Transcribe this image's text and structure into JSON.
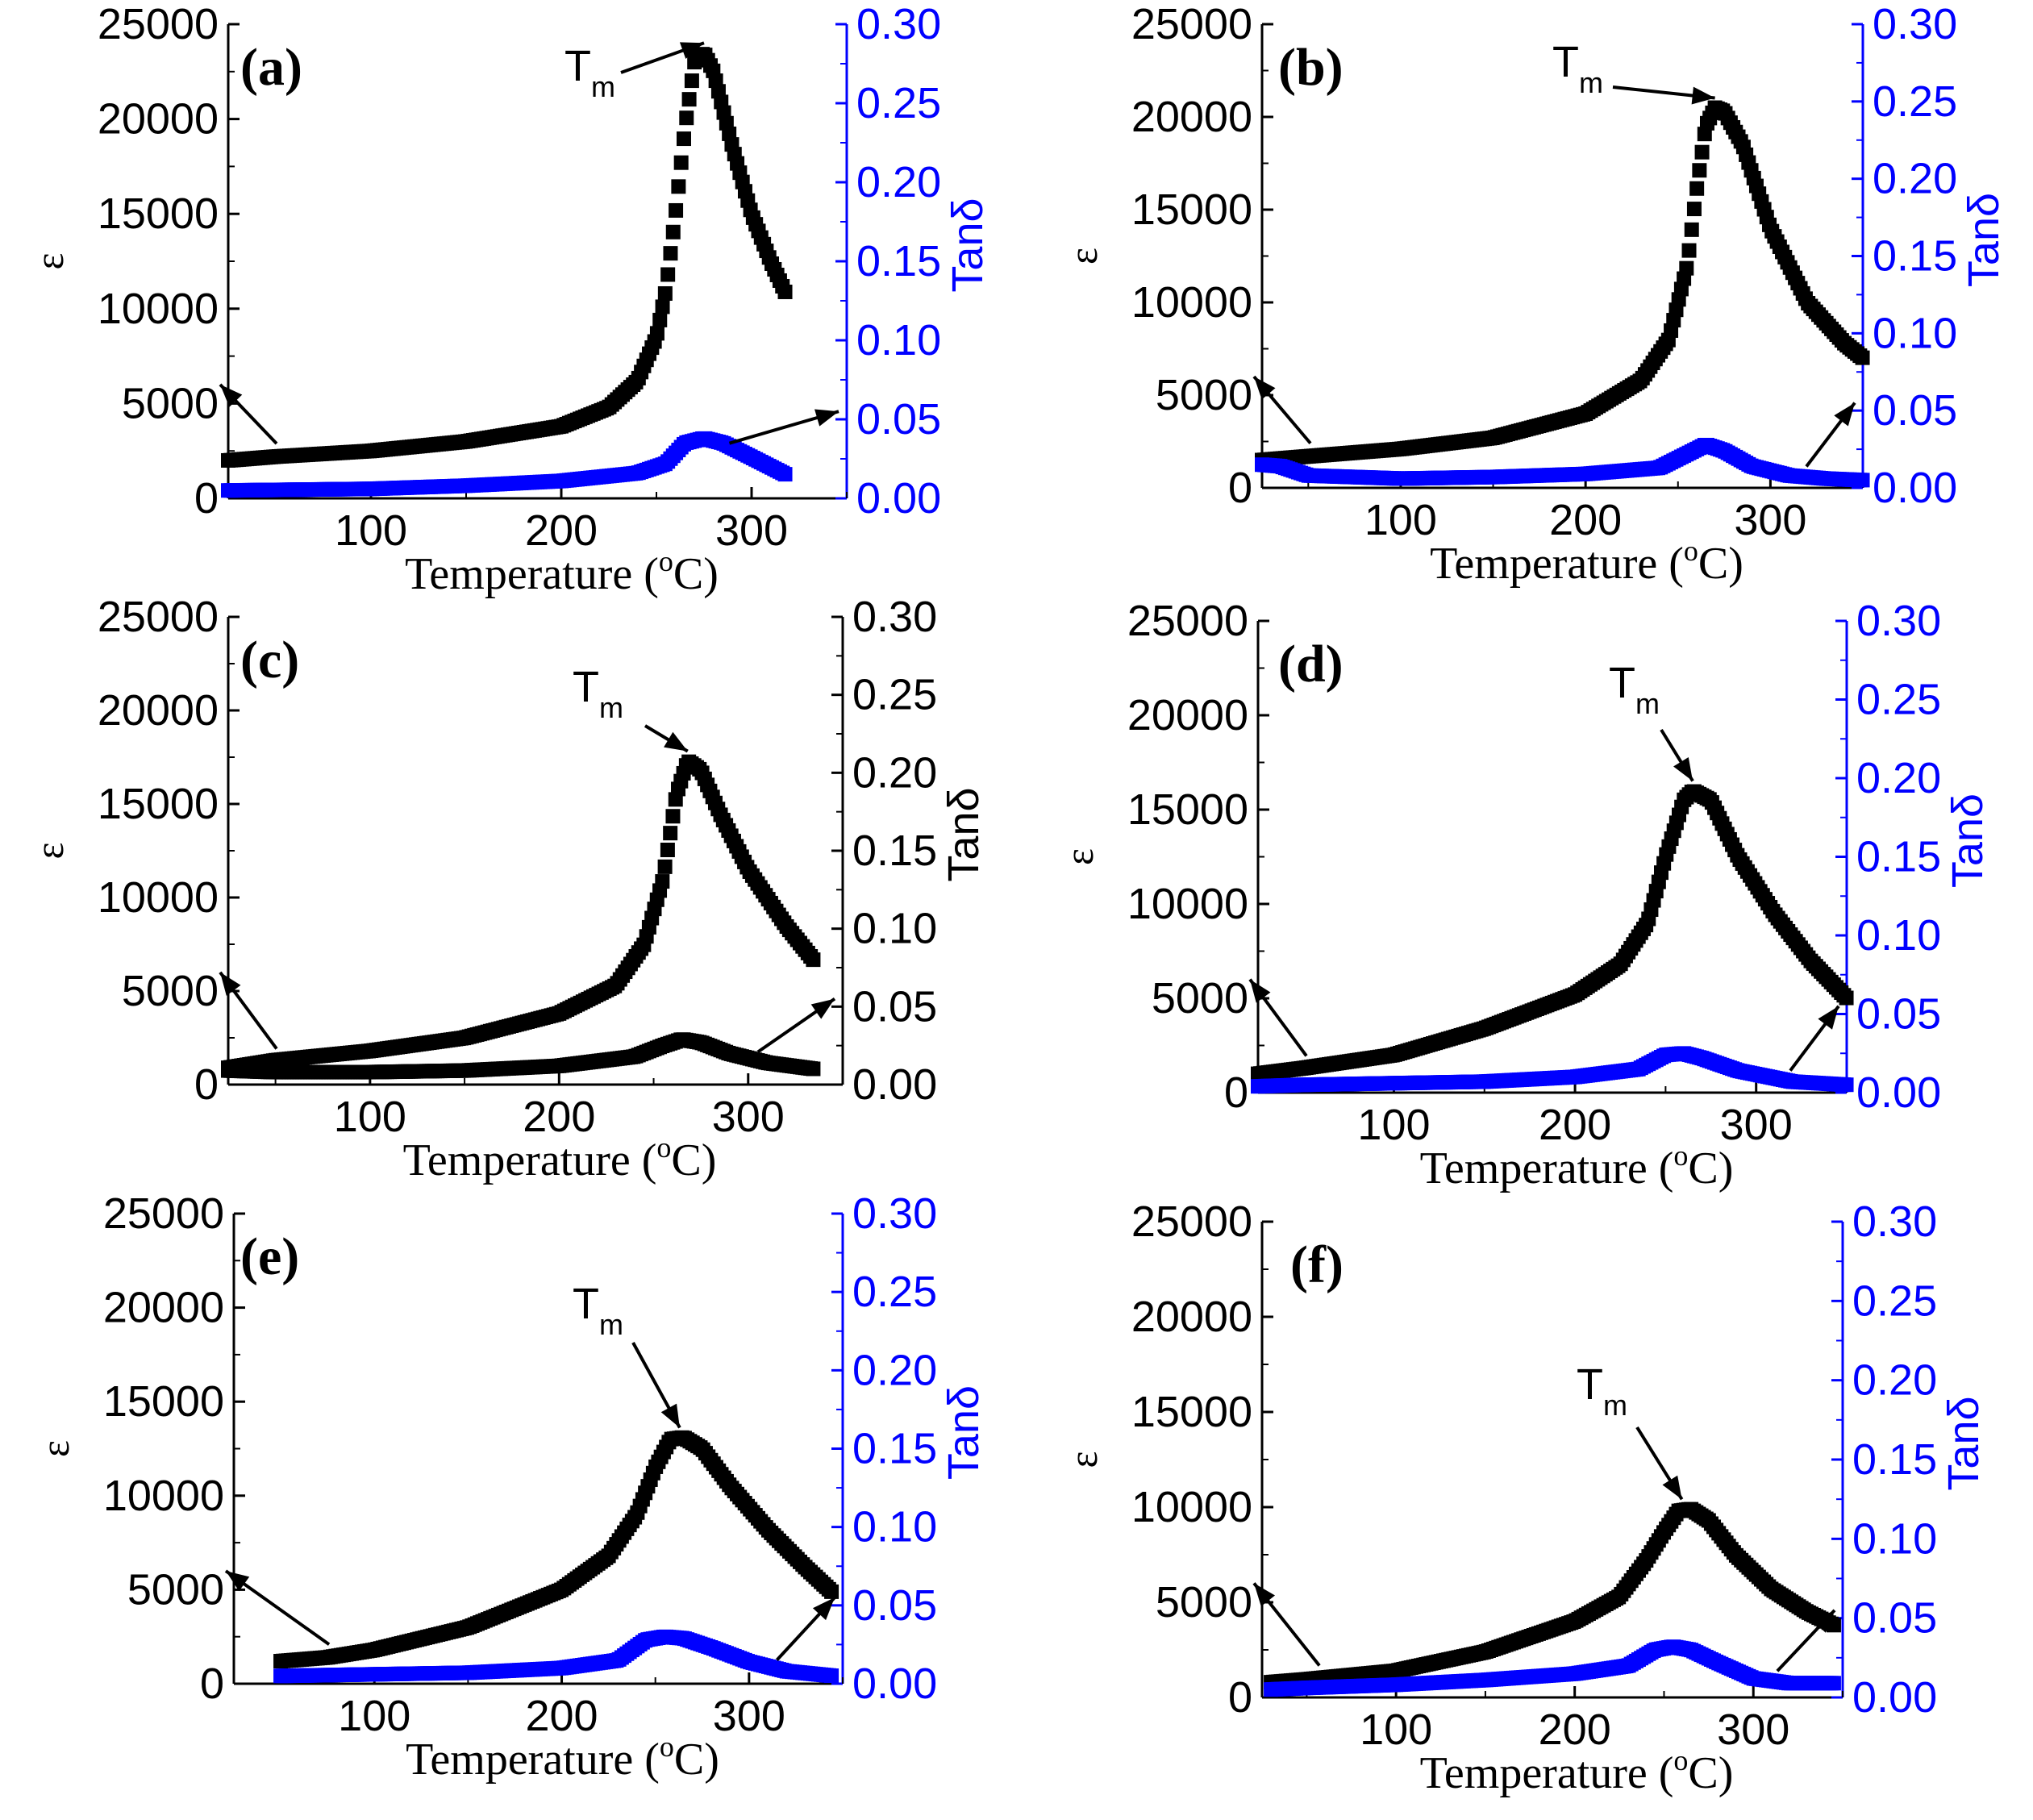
{
  "colors": {
    "eps": "#000000",
    "tan": "#0000ff",
    "axis": "#000000"
  },
  "common": {
    "xlabel_main": "Temperature (",
    "xlabel_sup": "o",
    "xlabel_end": "C)",
    "ylabel_left": "ε",
    "ylabel_right": "Tanδ",
    "tm_main": "T",
    "tm_sub": "m",
    "yticks_left": [
      "0",
      "5000",
      "10000",
      "15000",
      "20000",
      "25000"
    ],
    "yticks_right": [
      "0.00",
      "0.05",
      "0.10",
      "0.15",
      "0.20",
      "0.25",
      "0.30"
    ],
    "xticks": [
      "100",
      "200",
      "300"
    ]
  },
  "chart_data": [
    {
      "panel": "(a)",
      "type": "scatter",
      "xlabel": "Temperature (°C)",
      "ylabel": "ε",
      "y2label": "Tanδ",
      "xlim": [
        25,
        350
      ],
      "ylim": [
        0,
        25000
      ],
      "y2lim": [
        0,
        0.3
      ],
      "right_axis_colored": true,
      "eps": {
        "x": [
          25,
          50,
          100,
          150,
          200,
          225,
          240,
          250,
          255,
          260,
          265,
          270,
          275,
          280,
          285,
          290,
          300,
          310,
          318
        ],
        "y": [
          2000,
          2200,
          2500,
          3000,
          3800,
          4800,
          6200,
          8500,
          11000,
          15000,
          19500,
          23000,
          23500,
          22500,
          20500,
          18500,
          15000,
          12500,
          10800
        ]
      },
      "tan": {
        "x": [
          25,
          100,
          150,
          200,
          240,
          255,
          265,
          275,
          285,
          300,
          318
        ],
        "y": [
          0.005,
          0.006,
          0.008,
          0.011,
          0.016,
          0.022,
          0.035,
          0.038,
          0.035,
          0.026,
          0.015
        ]
      },
      "tm_peak": [
        275,
        23500
      ]
    },
    {
      "panel": "(b)",
      "type": "scatter",
      "xlabel": "Temperature (°C)",
      "ylabel": "ε",
      "y2label": "Tanδ",
      "xlim": [
        25,
        350
      ],
      "ylim": [
        0,
        25000
      ],
      "y2lim": [
        0,
        0.3
      ],
      "right_axis_colored": true,
      "eps": {
        "x": [
          25,
          50,
          100,
          150,
          200,
          230,
          245,
          255,
          260,
          265,
          270,
          275,
          285,
          300,
          320,
          340,
          350
        ],
        "y": [
          1500,
          1700,
          2100,
          2700,
          4000,
          5800,
          8000,
          12000,
          16000,
          19500,
          20500,
          20300,
          18500,
          14000,
          10000,
          7800,
          7000
        ]
      },
      "tan": {
        "x": [
          25,
          35,
          50,
          100,
          150,
          200,
          240,
          255,
          265,
          275,
          290,
          310,
          330,
          350
        ],
        "y": [
          0.015,
          0.014,
          0.008,
          0.006,
          0.007,
          0.009,
          0.013,
          0.022,
          0.028,
          0.024,
          0.014,
          0.008,
          0.006,
          0.005
        ]
      },
      "tm_peak": [
        270,
        20500
      ]
    },
    {
      "panel": "(c)",
      "type": "scatter",
      "xlabel": "Temperature (°C)",
      "ylabel": "ε",
      "y2label": "Tanδ",
      "xlim": [
        25,
        350
      ],
      "ylim": [
        0,
        25000
      ],
      "y2lim": [
        0,
        0.3
      ],
      "right_axis_colored": false,
      "eps": {
        "x": [
          25,
          50,
          100,
          150,
          200,
          230,
          245,
          255,
          262,
          268,
          275,
          285,
          300,
          320,
          335
        ],
        "y": [
          900,
          1300,
          1800,
          2500,
          3800,
          5300,
          7500,
          11000,
          15500,
          17300,
          16800,
          14500,
          11500,
          8500,
          6600
        ]
      },
      "tan": {
        "x": [
          25,
          50,
          100,
          150,
          200,
          240,
          255,
          265,
          275,
          290,
          310,
          335
        ],
        "y": [
          0.009,
          0.008,
          0.008,
          0.009,
          0.012,
          0.018,
          0.025,
          0.029,
          0.027,
          0.02,
          0.014,
          0.01
        ]
      },
      "tm_peak": [
        268,
        17300
      ]
    },
    {
      "panel": "(d)",
      "type": "scatter",
      "xlabel": "Temperature (°C)",
      "ylabel": "ε",
      "y2label": "Tanδ",
      "xlim": [
        25,
        350
      ],
      "ylim": [
        0,
        25000
      ],
      "y2lim": [
        0,
        0.3
      ],
      "right_axis_colored": true,
      "eps": {
        "x": [
          25,
          50,
          100,
          150,
          200,
          225,
          240,
          250,
          260,
          265,
          275,
          290,
          310,
          330,
          350
        ],
        "y": [
          1000,
          1300,
          2000,
          3400,
          5200,
          6800,
          9000,
          12500,
          15500,
          16000,
          15500,
          12500,
          9500,
          7000,
          5000
        ]
      },
      "tan": {
        "x": [
          25,
          50,
          100,
          150,
          200,
          235,
          250,
          260,
          270,
          290,
          320,
          350
        ],
        "y": [
          0.004,
          0.005,
          0.006,
          0.007,
          0.01,
          0.015,
          0.024,
          0.025,
          0.022,
          0.014,
          0.007,
          0.005
        ]
      },
      "tm_peak": [
        265,
        16000
      ]
    },
    {
      "panel": "(e)",
      "type": "scatter",
      "xlabel": "Temperature (°C)",
      "ylabel": "ε",
      "y2label": "Tanδ",
      "xlim": [
        25,
        350
      ],
      "ylim": [
        0,
        25000
      ],
      "y2lim": [
        0,
        0.3
      ],
      "right_axis_colored": true,
      "eps": {
        "x": [
          50,
          75,
          100,
          150,
          200,
          225,
          240,
          250,
          258,
          265,
          275,
          290,
          310,
          330,
          345
        ],
        "y": [
          1200,
          1400,
          1800,
          3000,
          5000,
          6800,
          9000,
          11500,
          13000,
          13100,
          12500,
          10500,
          8200,
          6200,
          4800
        ]
      },
      "tan": {
        "x": [
          50,
          100,
          150,
          200,
          230,
          245,
          255,
          265,
          280,
          300,
          320,
          345
        ],
        "y": [
          0.005,
          0.006,
          0.007,
          0.01,
          0.015,
          0.028,
          0.03,
          0.029,
          0.023,
          0.014,
          0.008,
          0.005
        ]
      },
      "tm_peak": [
        263,
        13100
      ]
    },
    {
      "panel": "(f)",
      "type": "scatter",
      "xlabel": "Temperature (°C)",
      "ylabel": "ε",
      "y2label": "Tanδ",
      "xlim": [
        25,
        350
      ],
      "ylim": [
        0,
        25000
      ],
      "y2lim": [
        0,
        0.3
      ],
      "right_axis_colored": true,
      "eps": {
        "x": [
          30,
          50,
          100,
          150,
          200,
          225,
          240,
          250,
          258,
          265,
          275,
          290,
          310,
          330,
          345
        ],
        "y": [
          800,
          950,
          1400,
          2400,
          4000,
          5300,
          7200,
          8700,
          9800,
          9900,
          9300,
          7500,
          5700,
          4500,
          3800
        ]
      },
      "tan": {
        "x": [
          30,
          50,
          100,
          150,
          200,
          230,
          245,
          255,
          265,
          280,
          300,
          320,
          345
        ],
        "y": [
          0.005,
          0.006,
          0.008,
          0.011,
          0.015,
          0.02,
          0.03,
          0.032,
          0.03,
          0.022,
          0.012,
          0.009,
          0.009
        ]
      },
      "tm_peak": [
        260,
        9900
      ]
    }
  ]
}
